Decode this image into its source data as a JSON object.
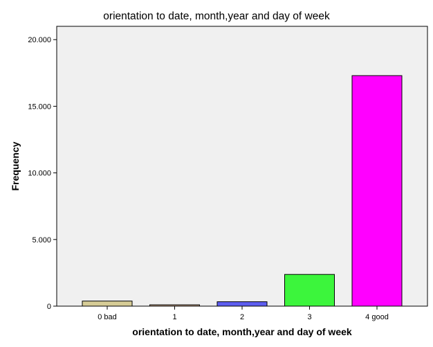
{
  "chart_data": {
    "type": "bar",
    "title": "orientation to date, month,year and day of week",
    "xlabel": "orientation to date, month,year and day of week",
    "ylabel": "Frequency",
    "categories": [
      "0 bad",
      "1",
      "2",
      "3",
      "4 good"
    ],
    "values": [
      380,
      100,
      330,
      2380,
      17300
    ],
    "ylim": [
      0,
      21000
    ],
    "yticks": [
      0,
      5000,
      10000,
      15000,
      20000
    ],
    "ytick_labels": [
      "0",
      "5.000",
      "10.000",
      "15.000",
      "20.000"
    ],
    "grid": false,
    "legend": "none",
    "colors": [
      "#d6cc96",
      "#c8a48a",
      "#5e5ef0",
      "#3cf53c",
      "#ff00ff"
    ],
    "plot_background": "#f0f0f0"
  }
}
